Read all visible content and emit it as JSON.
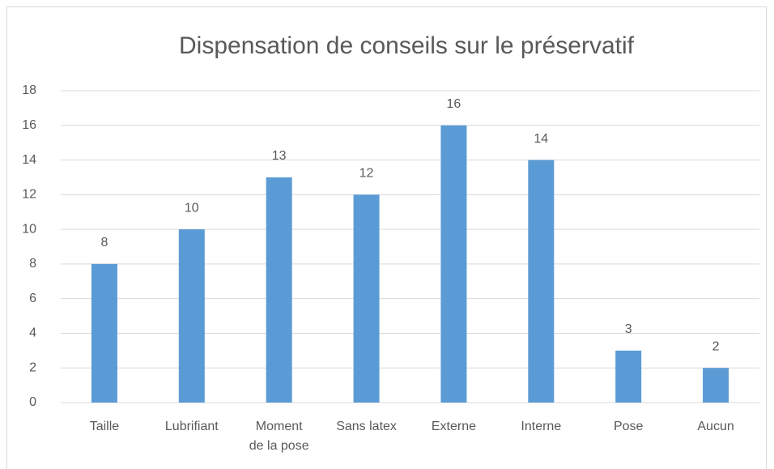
{
  "chart_data": {
    "type": "bar",
    "title": "Dispensation de conseils sur le préservatif",
    "categories": [
      "Taille",
      "Lubrifiant",
      "Moment de la pose",
      "Sans latex",
      "Externe",
      "Interne",
      "Pose",
      "Aucun"
    ],
    "values": [
      8,
      10,
      13,
      12,
      16,
      14,
      3,
      2
    ],
    "color": "#5b9bd5",
    "ylim": [
      0,
      18
    ],
    "yticks": [
      0,
      2,
      4,
      6,
      8,
      10,
      12,
      14,
      16,
      18
    ],
    "grid": true,
    "data_labels": true
  }
}
